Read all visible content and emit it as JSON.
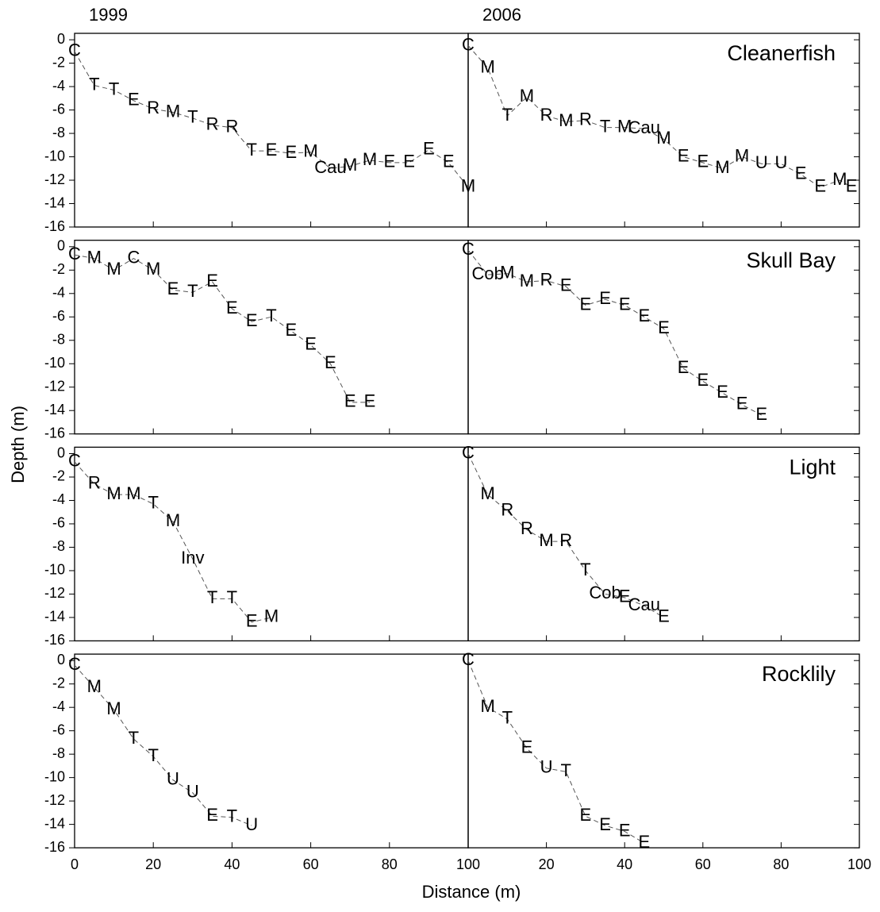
{
  "xlabel": "Distance (m)",
  "ylabel": "Depth (m)",
  "chart_data": [
    {
      "type": "line",
      "title": "1999",
      "x": [
        0,
        5,
        10,
        15,
        20,
        25,
        30,
        35,
        40,
        45,
        50,
        55,
        60,
        65,
        70,
        75,
        80,
        85,
        90,
        95,
        100
      ],
      "values": [
        -1,
        -3.9,
        -4.3,
        -5.2,
        -5.9,
        -6.2,
        -6.7,
        -7.3,
        -7.5,
        -9.5,
        -9.5,
        -9.7,
        -9.6,
        -11,
        -10.8,
        -10.3,
        -10.5,
        -10.5,
        -9.4,
        -10.5,
        -12.6
      ],
      "labels": [
        "C",
        "T",
        "T",
        "E",
        "R",
        "M",
        "T",
        "R",
        "R",
        "T",
        "E",
        "E",
        "M",
        "Cau",
        "M",
        "M",
        "E",
        "E",
        "E",
        "E",
        "M"
      ],
      "xlim": [
        0,
        100
      ],
      "ylim": [
        -16,
        0.55
      ],
      "xticks": [
        0,
        20,
        40,
        60,
        80,
        100
      ],
      "yticks": [
        0,
        -2,
        -4,
        -6,
        -8,
        -10,
        -12,
        -14,
        -16
      ]
    },
    {
      "type": "line",
      "title": "2006",
      "annotation": "Cleanerfish",
      "x": [
        0,
        5,
        10,
        15,
        20,
        25,
        30,
        35,
        40,
        45,
        50,
        55,
        60,
        65,
        70,
        75,
        80,
        85,
        90,
        95,
        98
      ],
      "values": [
        -0.5,
        -2.4,
        -6.5,
        -4.9,
        -6.5,
        -7,
        -6.9,
        -7.5,
        -7.5,
        -7.6,
        -8.5,
        -10,
        -10.5,
        -11,
        -10,
        -10.6,
        -10.6,
        -11.5,
        -12.6,
        -12,
        -12.6
      ],
      "labels": [
        "C",
        "M",
        "T",
        "M",
        "R",
        "M",
        "R",
        "T",
        "M",
        "Cau",
        "M",
        "E",
        "E",
        "M",
        "M",
        "U",
        "U",
        "E",
        "E",
        "M",
        "E"
      ],
      "xlim": [
        0,
        100
      ],
      "ylim": [
        -16,
        0.55
      ],
      "xticks": [
        0,
        20,
        40,
        60,
        80,
        100
      ],
      "yticks": [
        0,
        -2,
        -4,
        -6,
        -8,
        -10,
        -12,
        -14,
        -16
      ]
    },
    {
      "type": "line",
      "x": [
        0,
        5,
        10,
        15,
        20,
        25,
        30,
        35,
        40,
        45,
        50,
        55,
        60,
        65,
        70,
        75
      ],
      "values": [
        -0.7,
        -1,
        -2,
        -1,
        -2,
        -3.7,
        -3.9,
        -3,
        -5.3,
        -6.4,
        -6,
        -7.2,
        -8.4,
        -10,
        -13.3,
        -13.3
      ],
      "labels": [
        "C",
        "M",
        "M",
        "C",
        "M",
        "E",
        "T",
        "E",
        "E",
        "E",
        "T",
        "E",
        "E",
        "E",
        "E",
        "E"
      ],
      "xlim": [
        0,
        100
      ],
      "ylim": [
        -16,
        0.55
      ],
      "xticks": [
        0,
        20,
        40,
        60,
        80,
        100
      ],
      "yticks": [
        0,
        -2,
        -4,
        -6,
        -8,
        -10,
        -12,
        -14,
        -16
      ]
    },
    {
      "type": "line",
      "annotation": "Skull Bay",
      "x": [
        0,
        5,
        10,
        15,
        20,
        25,
        30,
        35,
        40,
        45,
        50,
        55,
        60,
        65,
        70,
        75
      ],
      "values": [
        -0.3,
        -2.4,
        -2.3,
        -3,
        -2.9,
        -3.4,
        -5,
        -4.5,
        -5,
        -6,
        -7,
        -10.4,
        -11.5,
        -12.5,
        -13.5,
        -14.4
      ],
      "labels": [
        "C",
        "Cob",
        "M",
        "M",
        "R",
        "E",
        "E",
        "E",
        "E",
        "E",
        "E",
        "E",
        "E",
        "E",
        "E",
        "E"
      ],
      "xlim": [
        0,
        100
      ],
      "ylim": [
        -16,
        0.55
      ],
      "xticks": [
        0,
        20,
        40,
        60,
        80,
        100
      ],
      "yticks": [
        0,
        -2,
        -4,
        -6,
        -8,
        -10,
        -12,
        -14,
        -16
      ]
    },
    {
      "type": "line",
      "x": [
        0,
        5,
        10,
        15,
        20,
        25,
        30,
        35,
        40,
        45,
        50
      ],
      "values": [
        -0.7,
        -2.6,
        -3.5,
        -3.5,
        -4.3,
        -5.8,
        -9,
        -12.4,
        -12.4,
        -14.4,
        -14
      ],
      "labels": [
        "C",
        "R",
        "M",
        "M",
        "T",
        "M",
        "Inv",
        "T",
        "T",
        "E",
        "M"
      ],
      "xlim": [
        0,
        100
      ],
      "ylim": [
        -16,
        0.55
      ],
      "xticks": [
        0,
        20,
        40,
        60,
        80,
        100
      ],
      "yticks": [
        0,
        -2,
        -4,
        -6,
        -8,
        -10,
        -12,
        -14,
        -16
      ]
    },
    {
      "type": "line",
      "annotation": "Light",
      "x": [
        0,
        5,
        10,
        15,
        20,
        25,
        30,
        35,
        40,
        45,
        50
      ],
      "values": [
        0,
        -3.5,
        -4.9,
        -6.5,
        -7.5,
        -7.5,
        -10,
        -12,
        -12.3,
        -13,
        -14
      ],
      "labels": [
        "C",
        "M",
        "R",
        "R",
        "M",
        "R",
        "T",
        "Cob",
        "E",
        "Cau",
        "E"
      ],
      "xlim": [
        0,
        100
      ],
      "ylim": [
        -16,
        0.55
      ],
      "xticks": [
        0,
        20,
        40,
        60,
        80,
        100
      ],
      "yticks": [
        0,
        -2,
        -4,
        -6,
        -8,
        -10,
        -12,
        -14,
        -16
      ]
    },
    {
      "type": "line",
      "x": [
        0,
        5,
        10,
        15,
        20,
        25,
        30,
        35,
        40,
        45
      ],
      "values": [
        -0.4,
        -2.3,
        -4.2,
        -6.7,
        -8.2,
        -10.2,
        -11.3,
        -13.3,
        -13.4,
        -14.1
      ],
      "labels": [
        "C",
        "M",
        "M",
        "T",
        "T",
        "U",
        "U",
        "E",
        "T",
        "U"
      ],
      "xlim": [
        0,
        100
      ],
      "ylim": [
        -16,
        0.55
      ],
      "xticks": [
        0,
        20,
        40,
        60,
        80,
        100
      ],
      "yticks": [
        0,
        -2,
        -4,
        -6,
        -8,
        -10,
        -12,
        -14,
        -16
      ]
    },
    {
      "type": "line",
      "annotation": "Rocklily",
      "x": [
        0,
        5,
        10,
        15,
        20,
        25,
        30,
        35,
        40,
        45
      ],
      "values": [
        0,
        -4,
        -5,
        -7.5,
        -9.2,
        -9.5,
        -13.3,
        -14.1,
        -14.6,
        -15.6
      ],
      "labels": [
        "C",
        "M",
        "T",
        "E",
        "U",
        "T",
        "E",
        "E",
        "E",
        "E"
      ],
      "xlim": [
        0,
        100
      ],
      "ylim": [
        -16,
        0.55
      ],
      "xticks": [
        0,
        20,
        40,
        60,
        80,
        100
      ],
      "yticks": [
        0,
        -2,
        -4,
        -6,
        -8,
        -10,
        -12,
        -14,
        -16
      ]
    }
  ]
}
